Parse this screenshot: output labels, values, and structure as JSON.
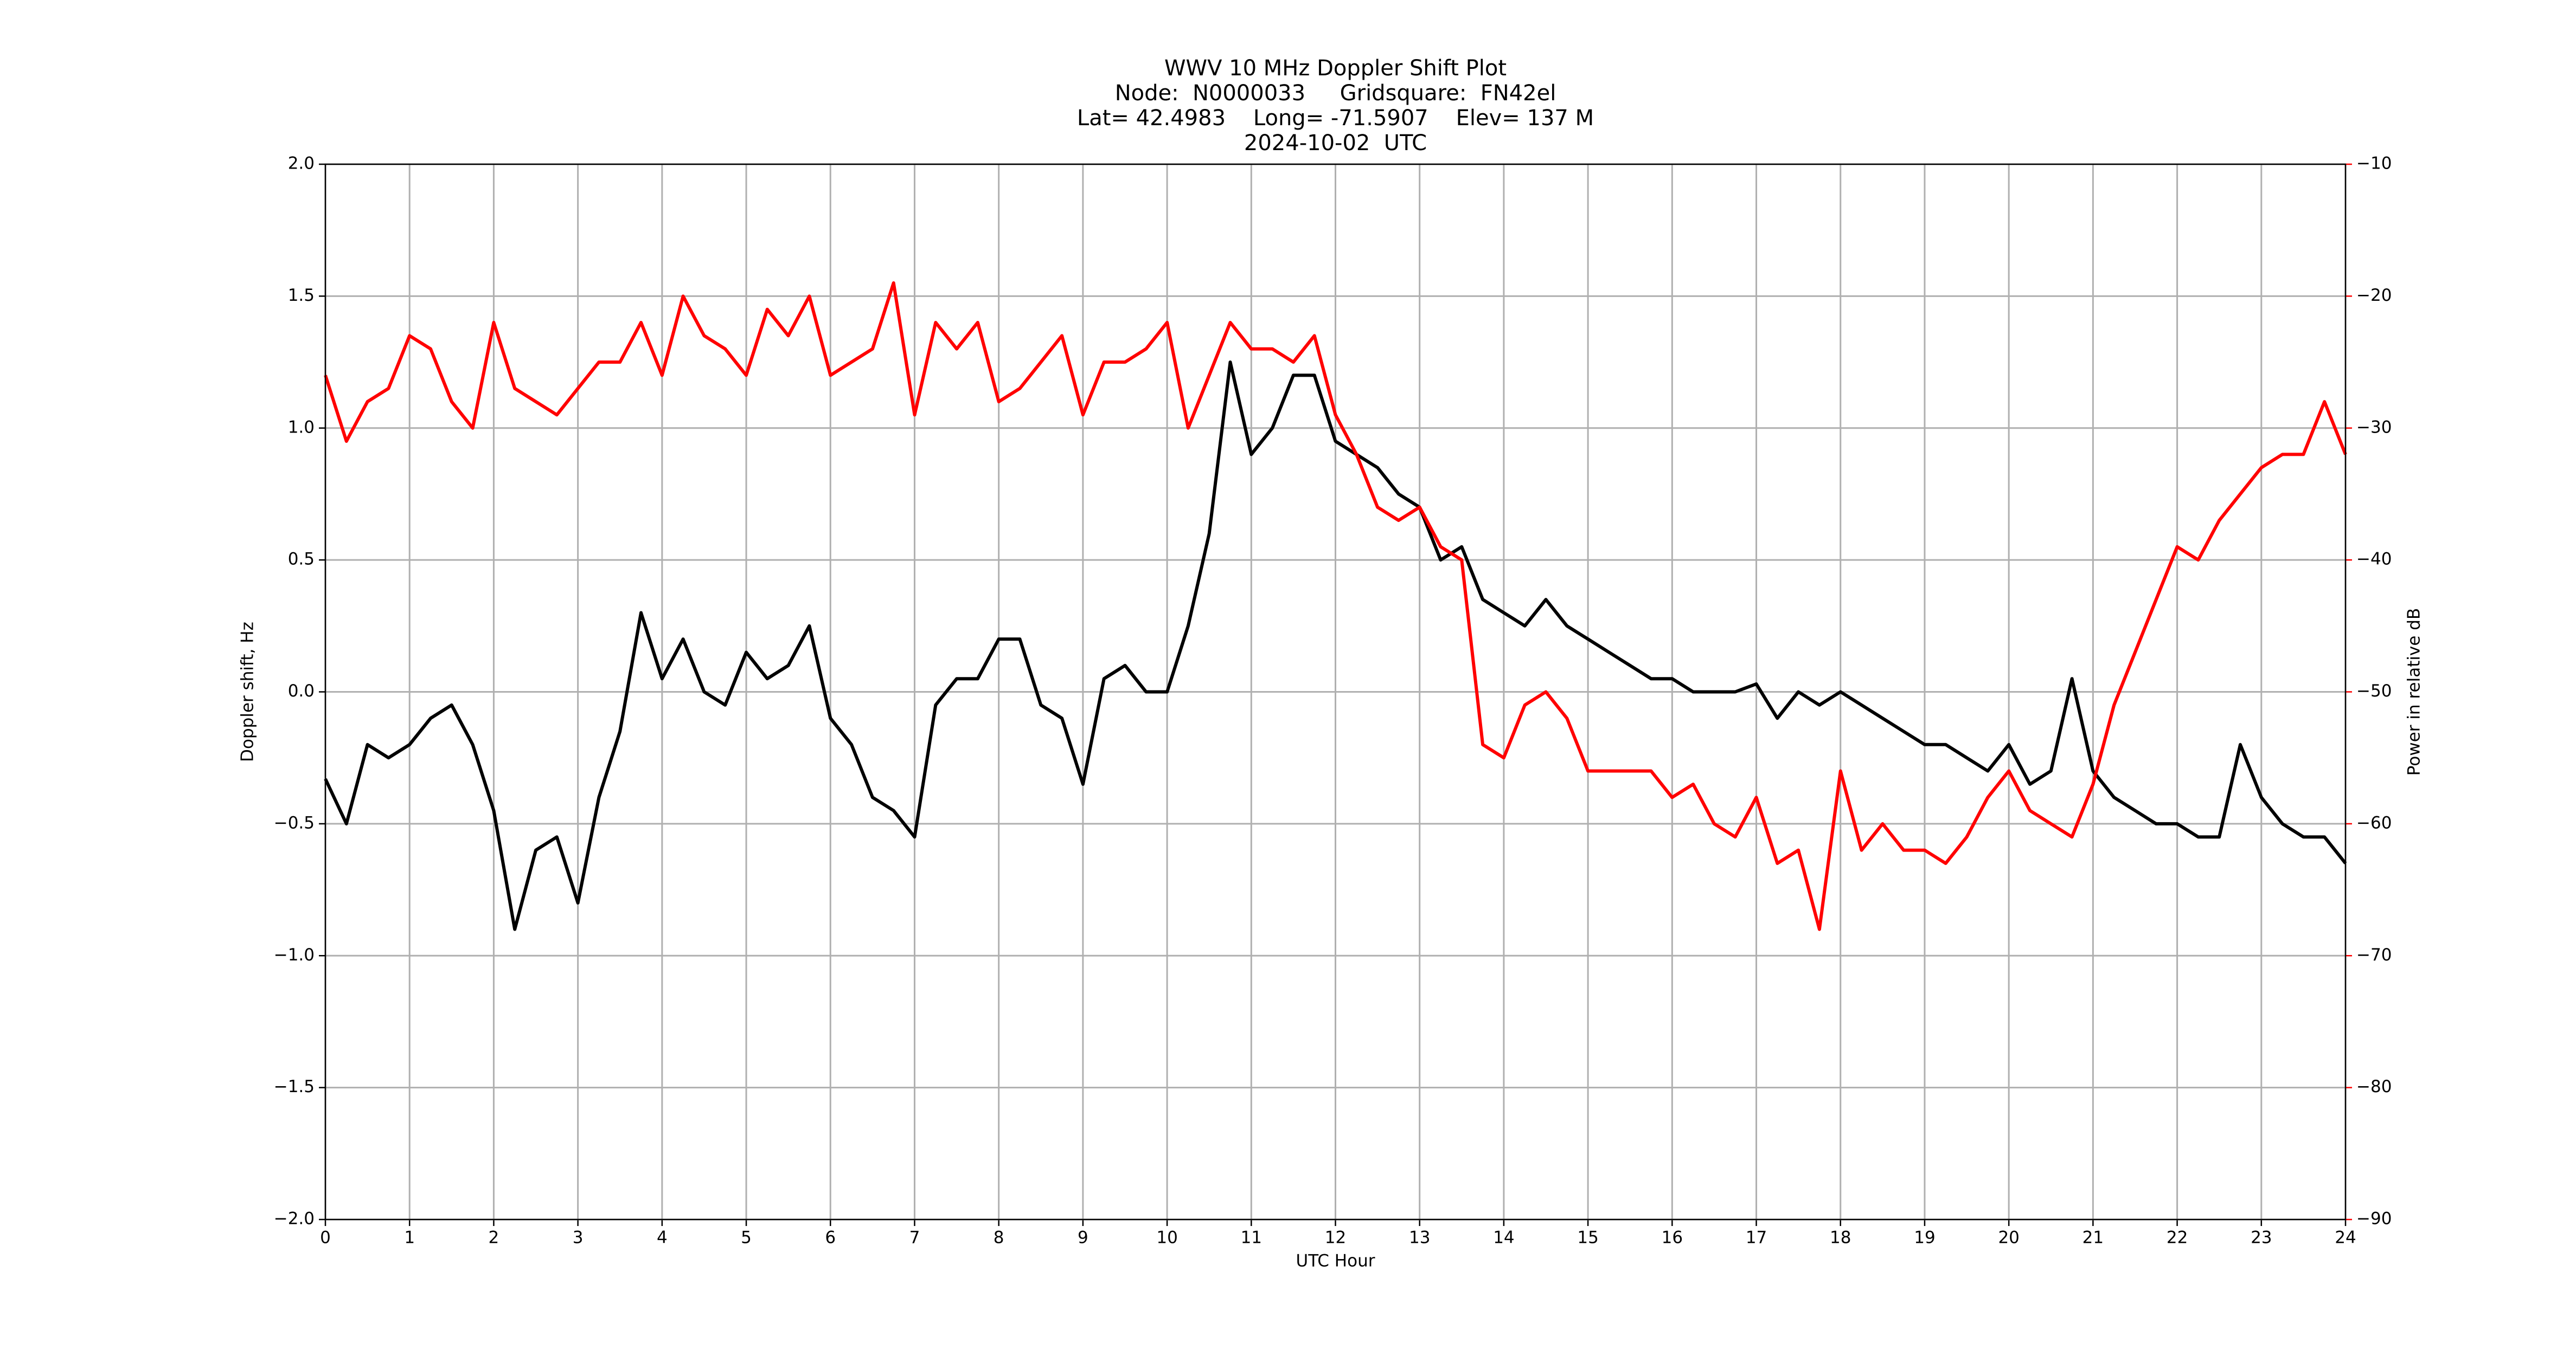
{
  "chart_data": {
    "type": "line",
    "title": [
      "WWV 10 MHz Doppler Shift Plot",
      "Node:  N0000033     Gridsquare:  FN42el",
      "Lat= 42.4983    Long= -71.5907    Elev= 137 M",
      "2024-10-02  UTC"
    ],
    "xlabel": "UTC Hour",
    "ylabel": "Doppler shift, Hz",
    "y2label": "Power in relative dB",
    "grid": true,
    "x": [
      0,
      0.25,
      0.5,
      0.75,
      1,
      1.25,
      1.5,
      1.75,
      2,
      2.25,
      2.5,
      2.75,
      3,
      3.25,
      3.5,
      3.75,
      4,
      4.25,
      4.5,
      4.75,
      5,
      5.25,
      5.5,
      5.75,
      6,
      6.25,
      6.5,
      6.75,
      7,
      7.25,
      7.5,
      7.75,
      8,
      8.25,
      8.5,
      8.75,
      9,
      9.25,
      9.5,
      9.75,
      10,
      10.25,
      10.5,
      10.75,
      11,
      11.25,
      11.5,
      11.75,
      12,
      12.25,
      12.5,
      12.75,
      13,
      13.25,
      13.5,
      13.75,
      14,
      14.25,
      14.5,
      14.75,
      15,
      15.25,
      15.5,
      15.75,
      16,
      16.25,
      16.5,
      16.75,
      17,
      17.25,
      17.5,
      17.75,
      18,
      18.25,
      18.5,
      18.75,
      19,
      19.25,
      19.5,
      19.75,
      20,
      20.25,
      20.5,
      20.75,
      21,
      21.25,
      21.5,
      21.75,
      22,
      22.25,
      22.5,
      22.75,
      23,
      23.25,
      23.5,
      23.75,
      24
    ],
    "series": [
      {
        "name": "Doppler shift",
        "color": "#000000",
        "axis": "y",
        "values": [
          -0.33,
          -0.5,
          -0.2,
          -0.25,
          -0.2,
          -0.1,
          -0.05,
          -0.2,
          -0.45,
          -0.9,
          -0.6,
          -0.55,
          -0.8,
          -0.4,
          -0.15,
          0.3,
          0.05,
          0.2,
          0,
          -0.05,
          0.15,
          0.05,
          0.1,
          0.25,
          -0.1,
          -0.2,
          -0.4,
          -0.45,
          -0.55,
          -0.05,
          0.05,
          0.05,
          0.2,
          0.2,
          -0.05,
          -0.1,
          -0.35,
          0.05,
          0.1,
          0,
          0,
          0.25,
          0.6,
          1.25,
          0.9,
          1,
          1.2,
          1.2,
          0.95,
          0.9,
          0.85,
          0.75,
          0.7,
          0.5,
          0.55,
          0.35,
          0.3,
          0.25,
          0.35,
          0.25,
          0.2,
          0.15,
          0.1,
          0.05,
          0.05,
          0,
          0,
          0,
          0.03,
          -0.1,
          0,
          -0.05,
          0,
          -0.05,
          -0.1,
          -0.15,
          -0.2,
          -0.2,
          -0.25,
          -0.3,
          -0.2,
          -0.35,
          -0.3,
          0.05,
          -0.3,
          -0.4,
          -0.45,
          -0.5,
          -0.5,
          -0.55,
          -0.55,
          -0.2,
          -0.4,
          -0.5,
          -0.55,
          -0.55,
          -0.65
        ]
      },
      {
        "name": "Power",
        "color": "#ff0000",
        "axis": "y2",
        "values": [
          -26,
          -31,
          -28,
          -27,
          -23,
          -24,
          -28,
          -30,
          -22,
          -27,
          -28,
          -29,
          -27,
          -25,
          -25,
          -22,
          -26,
          -20,
          -23,
          -24,
          -26,
          -21,
          -23,
          -20,
          -26,
          -25,
          -24,
          -19,
          -29,
          -22,
          -24,
          -22,
          -28,
          -27,
          -25,
          -23,
          -29,
          -25,
          -25,
          -24,
          -22,
          -30,
          -26,
          -22,
          -24,
          -24,
          -25,
          -23,
          -29,
          -32,
          -36,
          -37,
          -36,
          -39,
          -40,
          -54,
          -55,
          -51,
          -50,
          -52,
          -56,
          -56,
          -56,
          -56,
          -58,
          -57,
          -60,
          -61,
          -58,
          -63,
          -62,
          -68,
          -56,
          -62,
          -60,
          -62,
          -62,
          -63,
          -61,
          -58,
          -56,
          -59,
          -60,
          -61,
          -57,
          -51,
          -47,
          -43,
          -39,
          -40,
          -37,
          -35,
          -33,
          -32,
          -32,
          -28,
          -32
        ]
      }
    ],
    "xlim": [
      0,
      24
    ],
    "xticks": [
      0,
      1,
      2,
      3,
      4,
      5,
      6,
      7,
      8,
      9,
      10,
      11,
      12,
      13,
      14,
      15,
      16,
      17,
      18,
      19,
      20,
      21,
      22,
      23,
      24
    ],
    "ylim": [
      -2,
      2
    ],
    "yticks": [
      {
        "value": -2,
        "label": "−2.0"
      },
      {
        "value": -1.5,
        "label": "−1.5"
      },
      {
        "value": -1,
        "label": "−1.0"
      },
      {
        "value": -0.5,
        "label": "−0.5"
      },
      {
        "value": 0,
        "label": "0.0"
      },
      {
        "value": 0.5,
        "label": "0.5"
      },
      {
        "value": 1,
        "label": "1.0"
      },
      {
        "value": 1.5,
        "label": "1.5"
      },
      {
        "value": 2,
        "label": "2.0"
      }
    ],
    "y2lim": [
      -90,
      -10
    ],
    "y2ticks": [
      {
        "value": -90,
        "label": "−90"
      },
      {
        "value": -80,
        "label": "−80"
      },
      {
        "value": -70,
        "label": "−70"
      },
      {
        "value": -60,
        "label": "−60"
      },
      {
        "value": -50,
        "label": "−50"
      },
      {
        "value": -40,
        "label": "−40"
      },
      {
        "value": -30,
        "label": "−30"
      },
      {
        "value": -20,
        "label": "−20"
      },
      {
        "value": -10,
        "label": "−10"
      }
    ]
  }
}
